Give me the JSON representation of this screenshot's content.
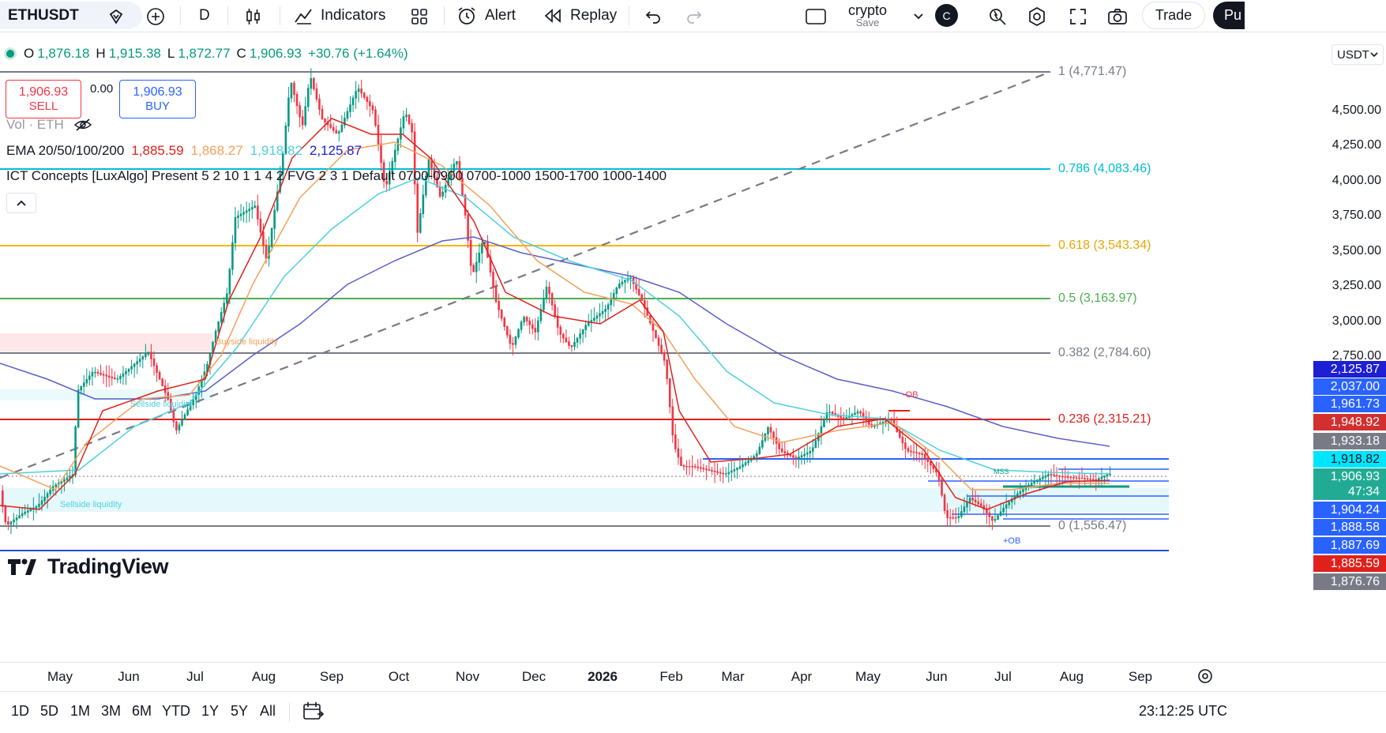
{
  "toolbar": {
    "symbol": "ETHUSDT",
    "interval": "D",
    "indicators_label": "Indicators",
    "alert_label": "Alert",
    "replay_label": "Replay",
    "layout_name": "crypto",
    "layout_save": "Save",
    "avatar_letter": "C",
    "trade_label": "Trade",
    "publish_label": "Pu"
  },
  "legend": {
    "ohlc": {
      "o_label": "O",
      "o": "1,876.18",
      "h_label": "H",
      "h": "1,915.38",
      "l_label": "L",
      "l": "1,872.77",
      "c_label": "C",
      "c": "1,906.93",
      "change": "+30.76 (+1.64%)"
    },
    "sell_price": "1,906.93",
    "sell_label": "SELL",
    "spread": "0.00",
    "buy_price": "1,906.93",
    "buy_label": "BUY",
    "vol_label": "Vol · ETH",
    "ema_label": "EMA 20/50/100/200",
    "ema_values": [
      "1,885.59",
      "1,868.27",
      "1,918.82",
      "2,125.87"
    ],
    "ict_label": "ICT Concepts [LuxAlgo] Present 5 2 10 1 1 4 2 FVG 2 3 1 Default 0700-0900 0700-1000 1500-1700 1000-1400"
  },
  "currency": "USDT",
  "price_axis": {
    "labels": [
      "4,500.00",
      "4,250.00",
      "4,000.00",
      "3,750.00",
      "3,500.00",
      "3,250.00",
      "3,000.00",
      "2,750.00"
    ],
    "badges": [
      {
        "value": "2,125.87",
        "color": "#1e1ed2"
      },
      {
        "value": "2,037.00",
        "color": "#2962ff"
      },
      {
        "value": "1,961.73",
        "color": "#2962ff"
      },
      {
        "value": "1,948.92",
        "color": "#d32f2f"
      },
      {
        "value": "1,933.18",
        "color": "#787b86"
      },
      {
        "value": "1,918.82",
        "color": "#00e5ff"
      },
      {
        "value": "1,906.93",
        "color": "#22ab94"
      },
      {
        "value": "47:34",
        "color": "#22ab94"
      },
      {
        "value": "1,904.24",
        "color": "#2962ff"
      },
      {
        "value": "1,888.58",
        "color": "#2962ff"
      },
      {
        "value": "1,887.69",
        "color": "#2962ff"
      },
      {
        "value": "1,885.59",
        "color": "#e0201b"
      },
      {
        "value": "1,876.76",
        "color": "#787b86"
      }
    ]
  },
  "fib_levels": [
    {
      "label": "1 (4,771.47)",
      "color": "#787b86"
    },
    {
      "label": "0.786 (4,083.46)",
      "color": "#00bcd4"
    },
    {
      "label": "0.618 (3,543.34)",
      "color": "#f7b500"
    },
    {
      "label": "0.5 (3,163.97)",
      "color": "#4caf50"
    },
    {
      "label": "0.382 (2,784.60)",
      "color": "#787b86"
    },
    {
      "label": "0.236 (2,315.21)",
      "color": "#e0201b"
    },
    {
      "label": "0 (1,556.47)",
      "color": "#787b86"
    }
  ],
  "annotations": {
    "buyside": "Buyside liquidity",
    "sellside_high": "Sellside liquidity",
    "sellside_low": "Sellside liquidity",
    "ob_bear": "-OB",
    "ob_bull": "+OB",
    "mss": "MSS"
  },
  "watermark": "TradingView",
  "time_axis": [
    "May",
    "Jun",
    "Jul",
    "Aug",
    "Sep",
    "Oct",
    "Nov",
    "Dec",
    "2026",
    "Feb",
    "Mar",
    "Apr",
    "May",
    "Jun",
    "Jul",
    "Aug",
    "Sep"
  ],
  "ranges": [
    "1D",
    "5D",
    "1M",
    "3M",
    "6M",
    "YTD",
    "1Y",
    "5Y",
    "All"
  ],
  "clock": "23:12:25 UTC",
  "colors": {
    "up": "#089981",
    "down": "#f23645",
    "ema20": "#e0201b",
    "ema50": "#f5a05a",
    "ema100": "#4dd0e1",
    "ema200": "#5b5fc7"
  }
}
